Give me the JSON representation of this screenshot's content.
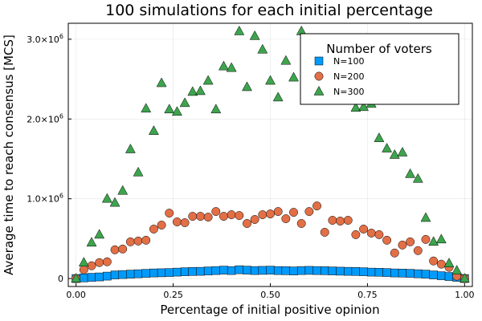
{
  "chart_data": {
    "type": "scatter",
    "title": "100 simulations for each initial percentage",
    "xlabel": "Percentage of initial positive opinion",
    "ylabel": "Average time to reach consensus [MCS]",
    "xlim": [
      -0.02,
      1.02
    ],
    "ylim": [
      -100000,
      3200000
    ],
    "x_ticks": [
      0.0,
      0.25,
      0.5,
      0.75,
      1.0
    ],
    "x_tick_labels": [
      "0.00",
      "0.25",
      "0.50",
      "0.75",
      "1.00"
    ],
    "y_ticks": [
      0,
      1000000,
      2000000,
      3000000
    ],
    "y_tick_labels": [
      {
        "mantissa": "0",
        "exp": ""
      },
      {
        "mantissa": "1.0×10",
        "exp": "6"
      },
      {
        "mantissa": "2.0×10",
        "exp": "6"
      },
      {
        "mantissa": "3.0×10",
        "exp": "6"
      }
    ],
    "grid": true,
    "legend": {
      "title": "Number of voters",
      "placement": "top-right"
    },
    "series": [
      {
        "name": "N=100",
        "marker": "square",
        "color": "#009AFA",
        "x": [
          0.0,
          0.02,
          0.04,
          0.06,
          0.08,
          0.1,
          0.12,
          0.14,
          0.16,
          0.18,
          0.2,
          0.22,
          0.24,
          0.26,
          0.28,
          0.3,
          0.32,
          0.34,
          0.36,
          0.38,
          0.4,
          0.42,
          0.44,
          0.46,
          0.48,
          0.5,
          0.52,
          0.54,
          0.56,
          0.58,
          0.6,
          0.62,
          0.64,
          0.66,
          0.68,
          0.7,
          0.72,
          0.74,
          0.76,
          0.78,
          0.8,
          0.82,
          0.84,
          0.86,
          0.88,
          0.9,
          0.92,
          0.94,
          0.96,
          0.98,
          1.0
        ],
        "y": [
          0,
          8000,
          15000,
          20000,
          30000,
          45000,
          50000,
          55000,
          60000,
          65000,
          70000,
          72000,
          75000,
          80000,
          85000,
          88000,
          90000,
          95000,
          100000,
          105000,
          100000,
          110000,
          105000,
          100000,
          102000,
          105000,
          100000,
          98000,
          95000,
          100000,
          102000,
          100000,
          98000,
          95000,
          92000,
          90000,
          88000,
          85000,
          80000,
          78000,
          75000,
          70000,
          68000,
          65000,
          60000,
          55000,
          45000,
          35000,
          25000,
          15000,
          0
        ]
      },
      {
        "name": "N=200",
        "marker": "circle",
        "color": "#E26F46",
        "x": [
          0.0,
          0.02,
          0.04,
          0.06,
          0.08,
          0.1,
          0.12,
          0.14,
          0.16,
          0.18,
          0.2,
          0.22,
          0.24,
          0.26,
          0.28,
          0.3,
          0.32,
          0.34,
          0.36,
          0.38,
          0.4,
          0.42,
          0.44,
          0.46,
          0.48,
          0.5,
          0.52,
          0.54,
          0.56,
          0.58,
          0.6,
          0.62,
          0.64,
          0.66,
          0.68,
          0.7,
          0.72,
          0.74,
          0.76,
          0.78,
          0.8,
          0.82,
          0.84,
          0.86,
          0.88,
          0.9,
          0.92,
          0.94,
          0.96,
          0.98,
          1.0
        ],
        "y": [
          0,
          110000,
          160000,
          200000,
          210000,
          360000,
          370000,
          460000,
          470000,
          480000,
          620000,
          670000,
          820000,
          710000,
          700000,
          780000,
          780000,
          770000,
          840000,
          780000,
          800000,
          790000,
          690000,
          740000,
          800000,
          810000,
          840000,
          750000,
          830000,
          690000,
          840000,
          910000,
          580000,
          730000,
          720000,
          730000,
          550000,
          620000,
          570000,
          550000,
          480000,
          320000,
          420000,
          460000,
          350000,
          490000,
          220000,
          180000,
          140000,
          30000,
          0
        ]
      },
      {
        "name": "N=300",
        "marker": "triangle",
        "color": "#3DA44D",
        "x": [
          0.0,
          0.02,
          0.04,
          0.06,
          0.08,
          0.1,
          0.12,
          0.14,
          0.16,
          0.18,
          0.2,
          0.22,
          0.24,
          0.26,
          0.28,
          0.3,
          0.32,
          0.34,
          0.36,
          0.38,
          0.4,
          0.42,
          0.44,
          0.46,
          0.48,
          0.5,
          0.52,
          0.54,
          0.56,
          0.58,
          0.6,
          0.62,
          0.64,
          0.66,
          0.68,
          0.7,
          0.72,
          0.74,
          0.76,
          0.78,
          0.8,
          0.82,
          0.84,
          0.86,
          0.88,
          0.9,
          0.92,
          0.94,
          0.96,
          0.98,
          1.0
        ],
        "y": [
          0,
          200000,
          450000,
          550000,
          1000000,
          950000,
          1100000,
          1620000,
          1330000,
          2130000,
          1850000,
          2450000,
          2120000,
          2090000,
          2200000,
          2340000,
          2350000,
          2480000,
          2120000,
          2660000,
          2640000,
          3100000,
          2400000,
          3040000,
          2870000,
          2480000,
          2270000,
          2730000,
          2520000,
          3100000,
          2940000,
          2820000,
          2730000,
          2860000,
          2480000,
          2420000,
          2140000,
          2150000,
          2190000,
          1760000,
          1630000,
          1550000,
          1580000,
          1310000,
          1250000,
          760000,
          460000,
          490000,
          190000,
          100000,
          0
        ]
      }
    ]
  }
}
